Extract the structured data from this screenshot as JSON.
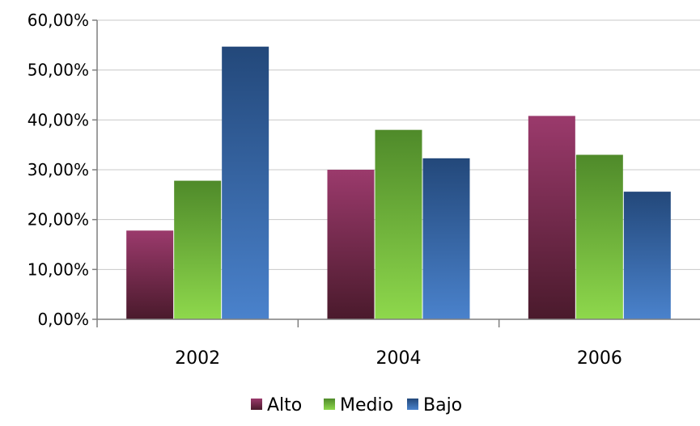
{
  "chart_data": {
    "type": "bar",
    "categories": [
      "2002",
      "2004",
      "2006"
    ],
    "series": [
      {
        "name": "Alto",
        "values": [
          17.8,
          30.0,
          40.8
        ],
        "color_top": "#9b3a6c",
        "color_bottom": "#4a1a2c"
      },
      {
        "name": "Medio",
        "values": [
          27.8,
          38.0,
          33.0
        ],
        "color_top": "#4f8a2a",
        "color_bottom": "#8ed84c"
      },
      {
        "name": "Bajo",
        "values": [
          54.7,
          32.3,
          25.6
        ],
        "color_top": "#23487a",
        "color_bottom": "#4a82cc"
      }
    ],
    "ylim": [
      0,
      60
    ],
    "y_ticks": [
      0,
      10,
      20,
      30,
      40,
      50,
      60
    ],
    "y_tick_labels": [
      "0,00%",
      "10,00%",
      "20,00%",
      "30,00%",
      "40,00%",
      "50,00%",
      "60,00%"
    ],
    "grid": true,
    "legend_position": "bottom"
  }
}
